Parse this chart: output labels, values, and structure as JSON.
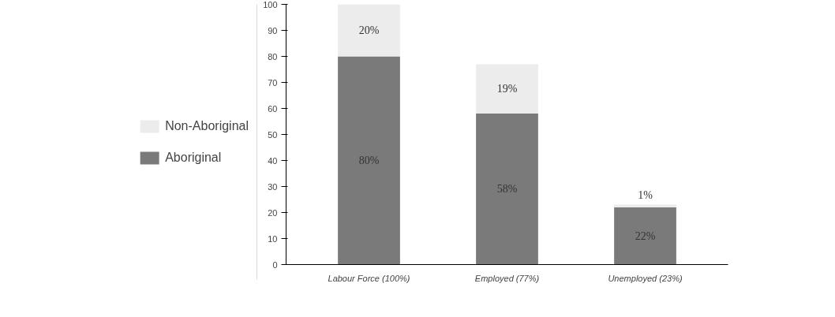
{
  "chart_data": {
    "type": "bar",
    "stacked": true,
    "categories": [
      "Labour Force (100%)",
      "Employed (77%)",
      "Unemployed (23%)"
    ],
    "series": [
      {
        "name": "Aboriginal",
        "color": "#7a7a7a",
        "values": [
          80,
          58,
          22
        ],
        "value_labels": [
          "80%",
          "58%",
          "22%"
        ]
      },
      {
        "name": "Non-Aboriginal",
        "color": "#ececec",
        "values": [
          20,
          19,
          1
        ],
        "value_labels": [
          "20%",
          "19%",
          "1%"
        ]
      }
    ],
    "ylim": [
      0,
      100
    ],
    "yticks": [
      0,
      10,
      20,
      30,
      40,
      50,
      60,
      70,
      80,
      90,
      100
    ],
    "grid": false,
    "legend": "left"
  }
}
